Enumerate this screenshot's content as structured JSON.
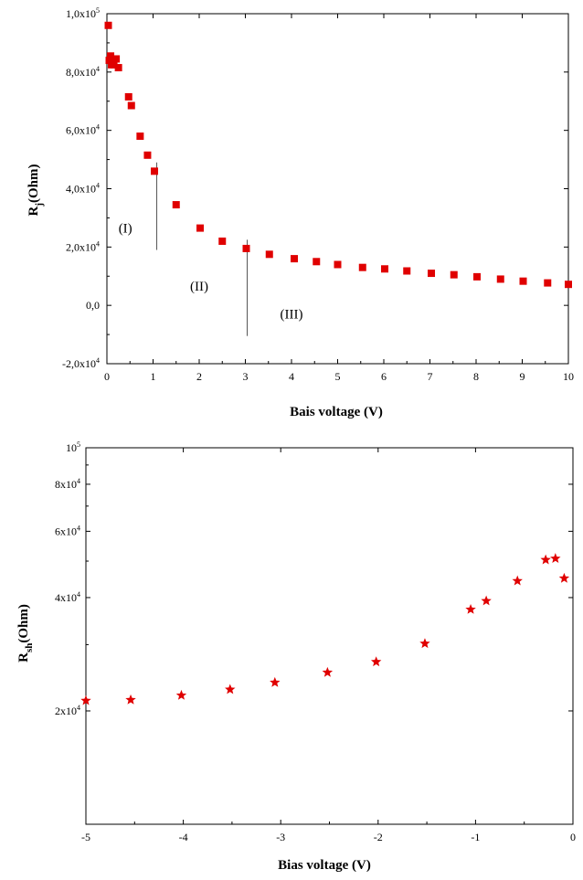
{
  "chart_data": [
    {
      "type": "scatter",
      "xlabel": "Bais voltage (V)",
      "ylabel": "R_j(Ohm)",
      "ylabel_main": "R",
      "ylabel_sub": "j",
      "ylabel_rest": "(Ohm)",
      "xlim": [
        0,
        10
      ],
      "ylim": [
        -20000,
        100000
      ],
      "x_ticks": [
        0,
        1,
        2,
        3,
        4,
        5,
        6,
        7,
        8,
        9,
        10
      ],
      "x_tick_labels": [
        "0",
        "1",
        "2",
        "3",
        "4",
        "5",
        "6",
        "7",
        "8",
        "9",
        "10"
      ],
      "y_ticks": [
        -20000,
        0,
        20000,
        40000,
        60000,
        80000,
        100000
      ],
      "y_tick_labels": [
        {
          "base": "-2,0x10",
          "exp": "4"
        },
        {
          "base": "0,0",
          "exp": ""
        },
        {
          "base": "2,0x10",
          "exp": "4"
        },
        {
          "base": "4,0x10",
          "exp": "4"
        },
        {
          "base": "6,0x10",
          "exp": "4"
        },
        {
          "base": "8,0x10",
          "exp": "4"
        },
        {
          "base": "1,0x10",
          "exp": "5"
        }
      ],
      "marker": "square",
      "color": "#e00000",
      "series": [
        {
          "name": "Rj",
          "points": [
            [
              0.03,
              96000
            ],
            [
              0.05,
              84000
            ],
            [
              0.08,
              85500
            ],
            [
              0.1,
              82500
            ],
            [
              0.15,
              82500
            ],
            [
              0.2,
              84500
            ],
            [
              0.25,
              81500
            ],
            [
              0.47,
              71500
            ],
            [
              0.53,
              68500
            ],
            [
              0.72,
              58000
            ],
            [
              0.88,
              51500
            ],
            [
              1.03,
              46000
            ],
            [
              1.5,
              34500
            ],
            [
              2.02,
              26500
            ],
            [
              2.5,
              22000
            ],
            [
              3.02,
              19500
            ],
            [
              3.52,
              17500
            ],
            [
              4.06,
              16000
            ],
            [
              4.54,
              15000
            ],
            [
              5.0,
              14000
            ],
            [
              5.54,
              13000
            ],
            [
              6.02,
              12500
            ],
            [
              6.5,
              11800
            ],
            [
              7.03,
              11000
            ],
            [
              7.52,
              10500
            ],
            [
              8.02,
              9800
            ],
            [
              8.53,
              9000
            ],
            [
              9.02,
              8300
            ],
            [
              9.55,
              7700
            ],
            [
              10.0,
              7200
            ]
          ]
        }
      ],
      "annotations": [
        {
          "text": "(I)",
          "x": 0.4,
          "y": 25000
        },
        {
          "text": "(II)",
          "x": 2.0,
          "y": 5000
        },
        {
          "text": "(III)",
          "x": 4.0,
          "y": -4500
        }
      ],
      "divider_lines": [
        {
          "x": 1.08,
          "y_from": 19000,
          "y_to": 49000
        },
        {
          "x": 3.04,
          "y_from": -10500,
          "y_to": 22500
        }
      ]
    },
    {
      "type": "scatter",
      "xlabel": "Bias voltage (V)",
      "ylabel": "R_sh(Ohm)",
      "ylabel_main": "R",
      "ylabel_sub": "sh",
      "ylabel_rest": "(Ohm)",
      "yscale": "log",
      "xlim": [
        -5,
        0
      ],
      "ylim": [
        10000,
        100000
      ],
      "x_ticks": [
        -5,
        -4,
        -3,
        -2,
        -1,
        0
      ],
      "x_tick_labels": [
        "-5",
        "-4",
        "-3",
        "-2",
        "-1",
        "0"
      ],
      "y_labeled_ticks": [
        20000,
        40000,
        60000,
        80000,
        100000
      ],
      "y_tick_labels": [
        {
          "base": "2x10",
          "exp": "4"
        },
        {
          "base": "4x10",
          "exp": "4"
        },
        {
          "base": "6x10",
          "exp": "4"
        },
        {
          "base": "8x10",
          "exp": "4"
        },
        {
          "base": "10",
          "exp": "5"
        }
      ],
      "y_minor_ticks": [
        30000,
        50000,
        70000,
        90000
      ],
      "marker": "star",
      "color": "#e00000",
      "series": [
        {
          "name": "Rsh",
          "points": [
            [
              -5.0,
              21300
            ],
            [
              -4.54,
              21400
            ],
            [
              -4.02,
              22000
            ],
            [
              -3.52,
              22800
            ],
            [
              -3.06,
              23800
            ],
            [
              -2.52,
              25300
            ],
            [
              -2.02,
              27000
            ],
            [
              -1.52,
              30200
            ],
            [
              -1.05,
              37200
            ],
            [
              -0.89,
              39200
            ],
            [
              -0.57,
              44300
            ],
            [
              -0.28,
              50400
            ],
            [
              -0.18,
              50800
            ],
            [
              -0.09,
              45000
            ]
          ]
        }
      ]
    }
  ]
}
